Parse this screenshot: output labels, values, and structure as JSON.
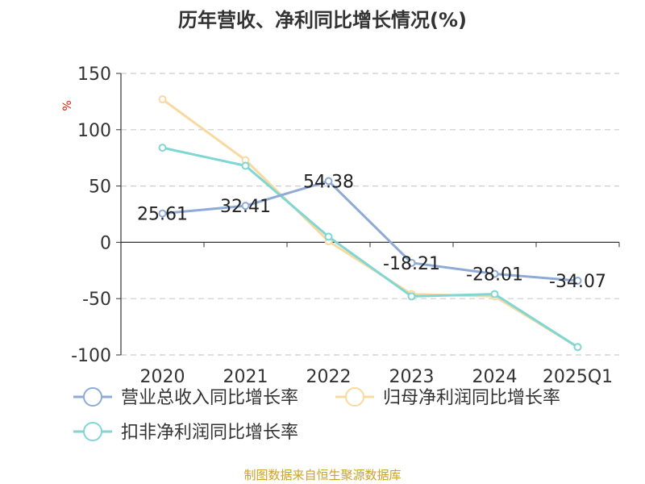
{
  "chart_data": {
    "type": "line",
    "title": "历年营收、净利同比增长情况(%)",
    "ylabel": "%",
    "ylim": [
      -100,
      150
    ],
    "yticks": [
      150,
      100,
      50,
      0,
      -50,
      -100
    ],
    "grid": true,
    "legend_position": "bottom",
    "categories": [
      "2020",
      "2021",
      "2022",
      "2023",
      "2024",
      "2025Q1"
    ],
    "series": [
      {
        "name": "营业总收入同比增长率",
        "color": "#8eaad6",
        "values": [
          25.61,
          32.41,
          54.38,
          -18.21,
          -28.01,
          -34.07
        ],
        "labels": [
          "25.61",
          "32.41",
          "54.38",
          "-18.21",
          "-28.01",
          "-34.07"
        ]
      },
      {
        "name": "归母净利润同比增长率",
        "color": "#f8d9a0",
        "values": [
          127,
          73,
          1,
          -46,
          -48,
          -93
        ]
      },
      {
        "name": "扣非净利润同比增长率",
        "color": "#7fd6d2",
        "values": [
          84,
          68,
          5,
          -48,
          -46,
          -93
        ]
      }
    ]
  },
  "source": "制图数据来自恒生聚源数据库"
}
